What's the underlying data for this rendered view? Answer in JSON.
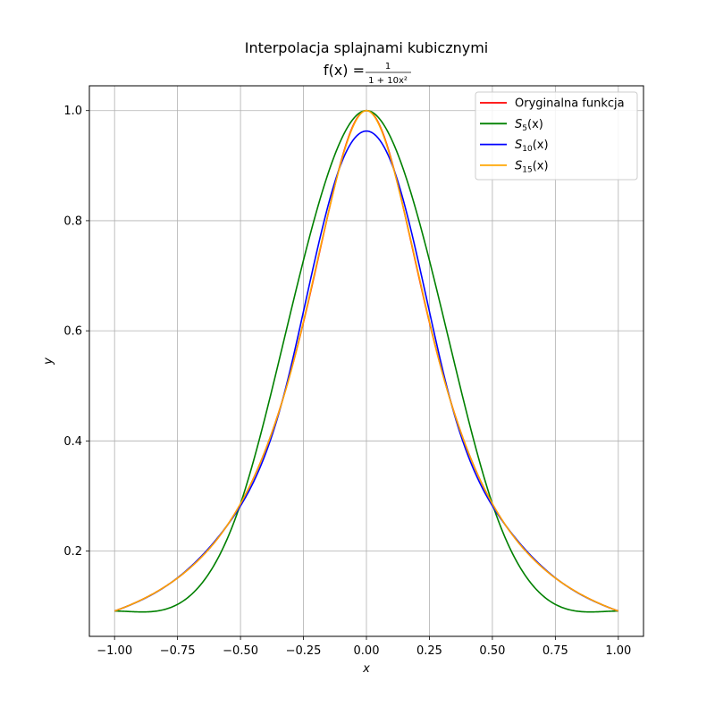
{
  "chart_data": {
    "type": "line",
    "title": "Interpolacja splajnami kubicznymi",
    "subtitle_parts": {
      "lhs": "f(x) =",
      "numerator": "1",
      "denominator": "1 + 10x²"
    },
    "xlabel": "x",
    "ylabel": "y",
    "xlim": [
      -1.1,
      1.1
    ],
    "ylim": [
      0.045,
      1.045
    ],
    "xticks": [
      -1.0,
      -0.75,
      -0.5,
      -0.25,
      0.0,
      0.25,
      0.5,
      0.75,
      1.0
    ],
    "xtick_labels": [
      "−1.00",
      "−0.75",
      "−0.50",
      "−0.25",
      "0.00",
      "0.25",
      "0.50",
      "0.75",
      "1.00"
    ],
    "yticks": [
      0.2,
      0.4,
      0.6,
      0.8,
      1.0
    ],
    "ytick_labels": [
      "0.2",
      "0.4",
      "0.6",
      "0.8",
      "1.0"
    ],
    "grid": true,
    "legend_position": "top-right",
    "x_domain": [
      -1.0,
      1.0
    ],
    "series": [
      {
        "name": "Oryginalna funkcja",
        "legend_main": "Oryginalna funkcja",
        "legend_sub": "",
        "legend_suffix": "",
        "color": "#ff0000",
        "kind": "function",
        "formula": "1/(1+10x^2)"
      },
      {
        "name": "S5(x)",
        "legend_main": "S",
        "legend_sub": "5",
        "legend_suffix": "(x)",
        "color": "#008000",
        "kind": "cubic-spline",
        "nodes_x": [
          -1.0,
          -0.5,
          0.0,
          0.5,
          1.0
        ],
        "end_derivatives": [
          0.0,
          0.0
        ]
      },
      {
        "name": "S10(x)",
        "legend_main": "S",
        "legend_sub": "10",
        "legend_suffix": "(x)",
        "color": "#0000ff",
        "kind": "cubic-spline",
        "nodes_x": [
          -1.0,
          -0.7777778,
          -0.5555556,
          -0.3333333,
          -0.1111111,
          0.1111111,
          0.3333333,
          0.5555556,
          0.7777778,
          1.0
        ],
        "end_derivatives": [
          0.165,
          -0.165
        ]
      },
      {
        "name": "S15(x)",
        "legend_main": "S",
        "legend_sub": "15",
        "legend_suffix": "(x)",
        "color": "#ffa500",
        "kind": "cubic-spline",
        "nodes_x": [
          -1.0,
          -0.8571429,
          -0.7142857,
          -0.5714286,
          -0.4285714,
          -0.2857143,
          -0.1428571,
          0.0,
          0.1428571,
          0.2857143,
          0.4285714,
          0.5714286,
          0.7142857,
          0.8571429,
          1.0
        ],
        "end_derivatives": [
          0.165,
          -0.165
        ]
      }
    ]
  }
}
